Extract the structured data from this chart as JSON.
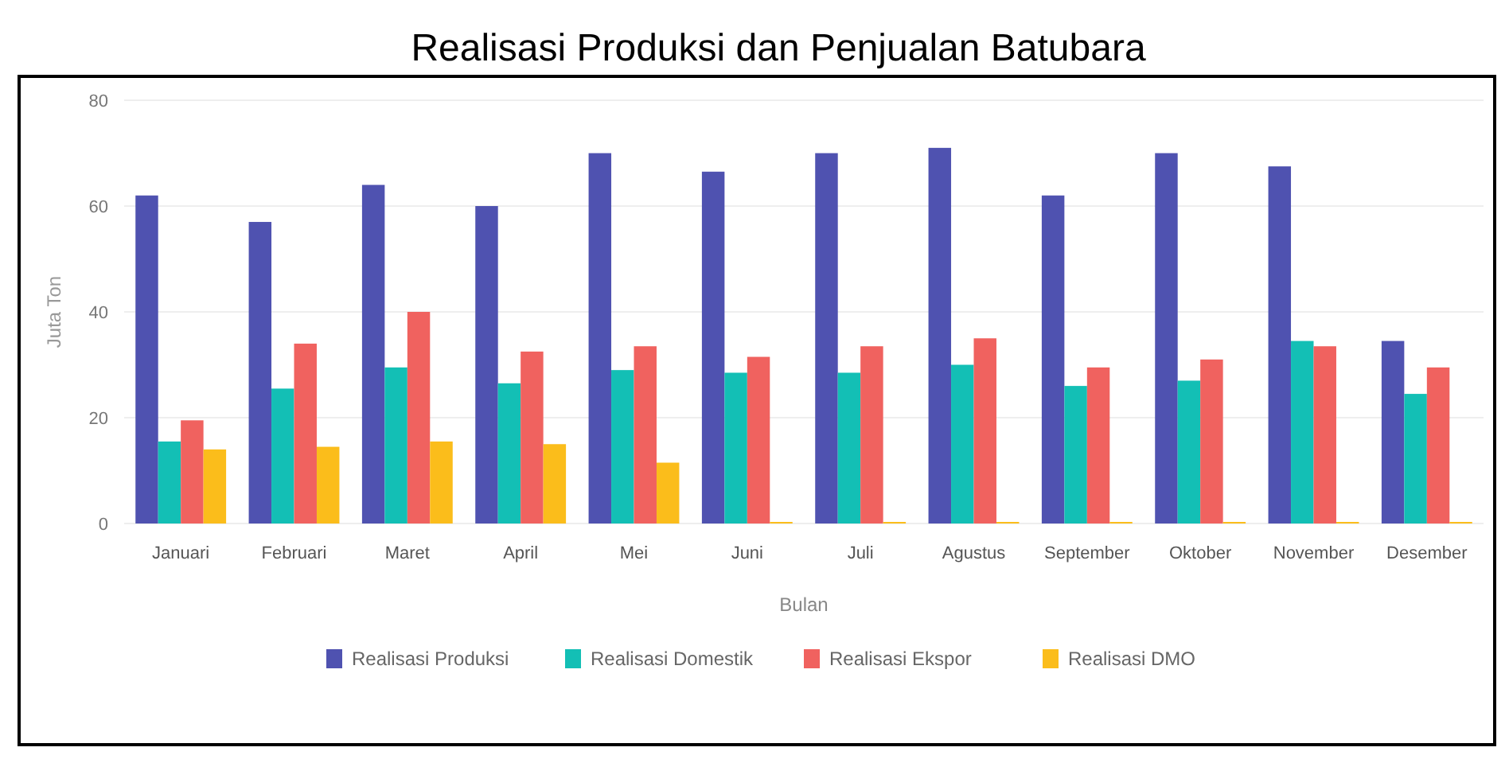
{
  "chart_data": {
    "type": "bar",
    "title": "Realisasi Produksi dan Penjualan Batubara",
    "xlabel": "Bulan",
    "ylabel": "Juta Ton",
    "categories": [
      "Januari",
      "Februari",
      "Maret",
      "April",
      "Mei",
      "Juni",
      "Juli",
      "Agustus",
      "September",
      "Oktober",
      "November",
      "Desember"
    ],
    "series": [
      {
        "name": "Realisasi Produksi",
        "color": "#4f52b0",
        "values": [
          62,
          57,
          64,
          60,
          70,
          66.5,
          70,
          71,
          62,
          70,
          67.5,
          34.5
        ]
      },
      {
        "name": "Realisasi Domestik",
        "color": "#13bfb5",
        "values": [
          15.5,
          25.5,
          29.5,
          26.5,
          29,
          28.5,
          28.5,
          30,
          26,
          27,
          34.5,
          24.5
        ]
      },
      {
        "name": "Realisasi Ekspor",
        "color": "#f0625f",
        "values": [
          19.5,
          34,
          40,
          32.5,
          33.5,
          31.5,
          33.5,
          35,
          29.5,
          31,
          33.5,
          29.5
        ]
      },
      {
        "name": "Realisasi DMO",
        "color": "#fbbd1b",
        "values": [
          14,
          14.5,
          15.5,
          15,
          11.5,
          0,
          0,
          0,
          0,
          0,
          0,
          0
        ]
      }
    ],
    "ylim": [
      0,
      80
    ],
    "yticks": [
      0,
      20,
      40,
      60,
      80
    ],
    "grid": "y",
    "legend": "bottom"
  }
}
